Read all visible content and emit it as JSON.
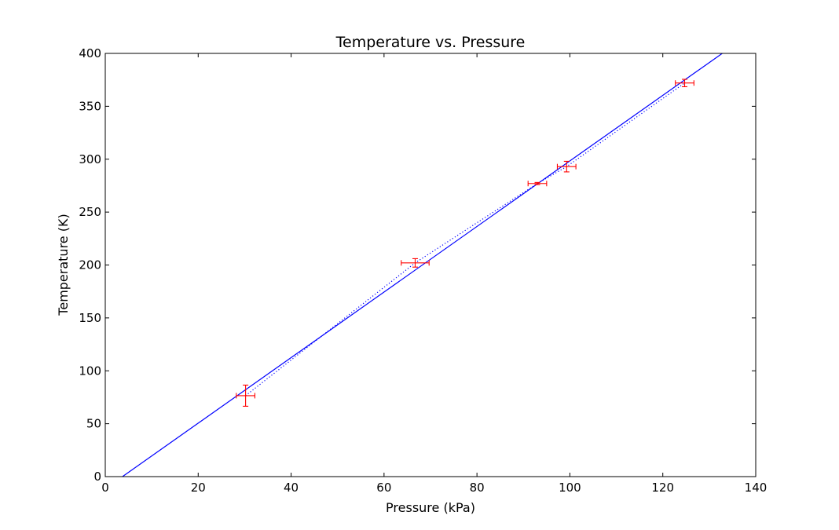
{
  "chart_data": {
    "type": "scatter",
    "title": "Temperature vs. Pressure",
    "xlabel": "Pressure (kPa)",
    "ylabel": "Temperature (K)",
    "xlim": [
      0,
      140
    ],
    "ylim": [
      0,
      400
    ],
    "xticks": [
      "0",
      "20",
      "40",
      "60",
      "80",
      "100",
      "120",
      "140"
    ],
    "yticks": [
      "0",
      "50",
      "100",
      "150",
      "200",
      "250",
      "300",
      "350",
      "400"
    ],
    "grid": false,
    "legend": "none",
    "series": [
      {
        "kind": "errorbar",
        "color": "#ff0000",
        "points": [
          {
            "x": 30.2,
            "y": 76.5,
            "xerr": 2.0,
            "yerr": 10.0
          },
          {
            "x": 66.7,
            "y": 202.0,
            "xerr": 3.0,
            "yerr": 4.0
          },
          {
            "x": 93.0,
            "y": 277.0,
            "xerr": 2.0,
            "yerr": 1.0
          },
          {
            "x": 99.3,
            "y": 293.0,
            "xerr": 2.0,
            "yerr": 5.0
          },
          {
            "x": 124.7,
            "y": 372.0,
            "xerr": 2.0,
            "yerr": 3.5
          }
        ]
      },
      {
        "kind": "line",
        "style": "dotted",
        "color": "#0000ff",
        "x": [
          30.2,
          66.7,
          93.0,
          99.3,
          124.7
        ],
        "y": [
          76.5,
          202.0,
          277.0,
          293.0,
          372.0
        ]
      },
      {
        "kind": "line",
        "style": "solid",
        "color": "#0000ff",
        "x": [
          3.7,
          132.8
        ],
        "y": [
          0,
          400
        ]
      }
    ]
  }
}
